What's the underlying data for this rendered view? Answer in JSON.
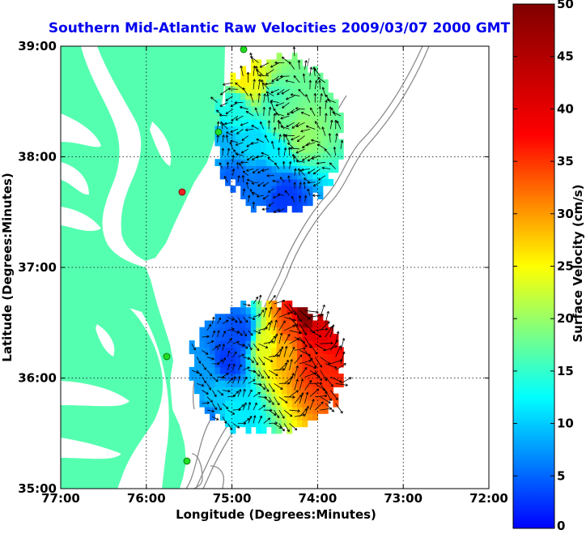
{
  "chart_data": {
    "type": "heatmap",
    "title": "Southern Mid-Atlantic Raw Velocities 2009/03/07 2000 GMT",
    "xlabel": "Longitude (Degrees:Minutes)",
    "ylabel": "Latitude (Degrees:Minutes)",
    "colorbar_label": "Surface Velocity (cm/s)",
    "xlim": [
      -77,
      -72
    ],
    "ylim": [
      35,
      39
    ],
    "clim": [
      0,
      50
    ],
    "x_ticks": [
      {
        "value": -77,
        "label": "77:00"
      },
      {
        "value": -76,
        "label": "76:00"
      },
      {
        "value": -75,
        "label": "75:00"
      },
      {
        "value": -74,
        "label": "74:00"
      },
      {
        "value": -73,
        "label": "73:00"
      },
      {
        "value": -72,
        "label": "72:00"
      }
    ],
    "y_ticks": [
      {
        "value": 35,
        "label": "35:00"
      },
      {
        "value": 36,
        "label": "36:00"
      },
      {
        "value": 37,
        "label": "37:00"
      },
      {
        "value": 38,
        "label": "38:00"
      },
      {
        "value": 39,
        "label": "39:00"
      }
    ],
    "colorbar_ticks": [
      {
        "value": 0,
        "label": "0"
      },
      {
        "value": 5,
        "label": "5"
      },
      {
        "value": 10,
        "label": "10"
      },
      {
        "value": 15,
        "label": "15"
      },
      {
        "value": 20,
        "label": "20"
      },
      {
        "value": 25,
        "label": "25"
      },
      {
        "value": 30,
        "label": "30"
      },
      {
        "value": 35,
        "label": "35"
      },
      {
        "value": 40,
        "label": "40"
      },
      {
        "value": 45,
        "label": "45"
      },
      {
        "value": 50,
        "label": "50"
      }
    ],
    "grid": true,
    "colormap": "jet",
    "regions": [
      {
        "name": "",
        "lon_range": [
          -75.2,
          -73.7
        ],
        "lat_range": [
          37.5,
          38.9
        ],
        "points": [
          {
            "lon": -74.85,
            "lat": 38.72,
            "speed": 32
          },
          {
            "lon": -74.7,
            "lat": 38.65,
            "speed": 30
          },
          {
            "lon": -74.55,
            "lat": 38.55,
            "speed": 22
          },
          {
            "lon": -74.95,
            "lat": 38.45,
            "speed": 20
          },
          {
            "lon": -74.4,
            "lat": 38.3,
            "speed": 24
          },
          {
            "lon": -74.2,
            "lat": 38.2,
            "speed": 26
          },
          {
            "lon": -74.75,
            "lat": 38.15,
            "speed": 17
          },
          {
            "lon": -74.5,
            "lat": 38.05,
            "speed": 18
          },
          {
            "lon": -75.1,
            "lat": 38.1,
            "speed": 15
          },
          {
            "lon": -74.6,
            "lat": 37.8,
            "speed": 12
          },
          {
            "lon": -74.4,
            "lat": 37.65,
            "speed": 9
          },
          {
            "lon": -75.0,
            "lat": 37.8,
            "speed": 11
          }
        ]
      },
      {
        "name": "",
        "lon_range": [
          -75.5,
          -73.7
        ],
        "lat_range": [
          35.5,
          36.7
        ],
        "points": [
          {
            "lon": -74.15,
            "lat": 36.55,
            "speed": 50
          },
          {
            "lon": -74.0,
            "lat": 36.4,
            "speed": 45
          },
          {
            "lon": -74.3,
            "lat": 36.45,
            "speed": 40
          },
          {
            "lon": -74.4,
            "lat": 36.25,
            "speed": 35
          },
          {
            "lon": -74.6,
            "lat": 36.3,
            "speed": 30
          },
          {
            "lon": -74.05,
            "lat": 36.2,
            "speed": 42
          },
          {
            "lon": -74.9,
            "lat": 36.4,
            "speed": 10
          },
          {
            "lon": -75.05,
            "lat": 36.15,
            "speed": 9
          },
          {
            "lon": -75.3,
            "lat": 36.05,
            "speed": 14
          },
          {
            "lon": -75.15,
            "lat": 35.85,
            "speed": 16
          },
          {
            "lon": -75.0,
            "lat": 35.7,
            "speed": 18
          },
          {
            "lon": -75.25,
            "lat": 35.6,
            "speed": 12
          }
        ]
      }
    ]
  },
  "colors": {
    "title": "#0000ee",
    "land": "#55ffb0",
    "background": "#ffffff",
    "bathymetry": "#8c8c8c",
    "station_green": "#22dd22",
    "station_red": "#ee2222",
    "vectors": "#000000"
  }
}
